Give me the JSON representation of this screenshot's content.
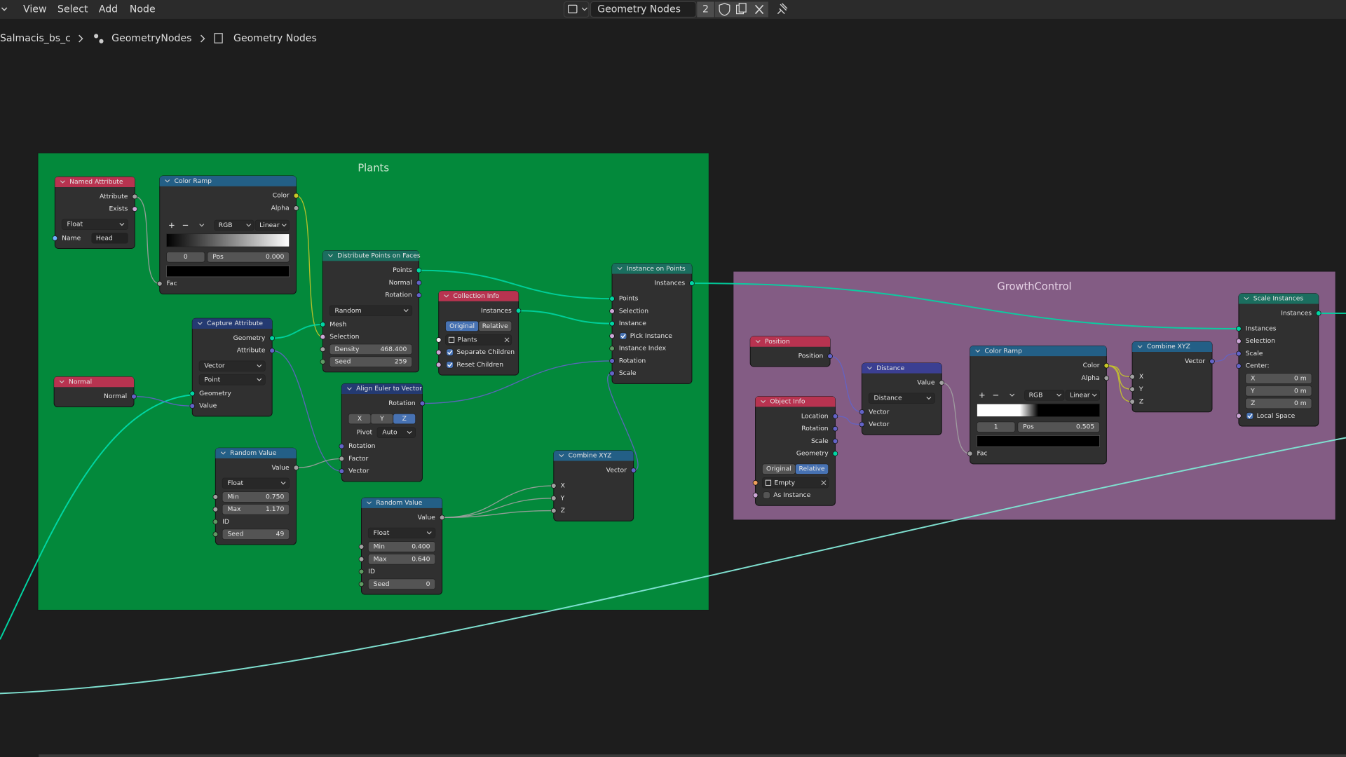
{
  "header": {
    "menus": [
      "View",
      "Select",
      "Add",
      "Node"
    ],
    "tree_name": "Geometry Nodes",
    "users": "2"
  },
  "breadcrumbs": [
    "Salmacis_bs_c",
    "GeometryNodes",
    "Geometry Nodes"
  ],
  "frames": [
    {
      "label": "Plants"
    },
    {
      "label": "GrowthControl"
    }
  ],
  "nodes": [
    {
      "title": "Named Attribute",
      "rows": [
        {
          "out": "Attribute"
        },
        {
          "out": "Exists"
        },
        {
          "menu": "Float"
        },
        {
          "string": "Name",
          "value": "Head"
        }
      ]
    },
    {
      "title": "Color Ramp",
      "rows": [
        {
          "out": "Color"
        },
        {
          "out": "Alpha"
        },
        {
          "ramp": {
            "mode": "RGB",
            "interpolation": "Linear",
            "index": "0",
            "pos_label": "Pos",
            "pos": "0.000"
          }
        },
        {
          "in": "Fac"
        }
      ]
    },
    {
      "title": "Distribute Points on Faces",
      "rows": [
        {
          "out": "Points"
        },
        {
          "out": "Normal"
        },
        {
          "out": "Rotation"
        },
        {
          "menu": "Random"
        },
        {
          "in": "Mesh"
        },
        {
          "in": "Selection"
        },
        {
          "field": "Density",
          "value": "468.400"
        },
        {
          "field": "Seed",
          "value": "259"
        }
      ]
    },
    {
      "title": "Capture Attribute",
      "rows": [
        {
          "out": "Geometry"
        },
        {
          "out": "Attribute"
        },
        {
          "menu": "Vector"
        },
        {
          "menu": "Point"
        },
        {
          "in": "Geometry"
        },
        {
          "in": "Value"
        }
      ]
    },
    {
      "title": "Normal",
      "rows": [
        {
          "out": "Normal"
        }
      ]
    },
    {
      "title": "Collection Info",
      "rows": [
        {
          "out": "Instances"
        },
        {
          "toggle": [
            "Original",
            "Relative"
          ],
          "active": 0
        },
        {
          "object": "Plants"
        },
        {
          "check": "Separate Children",
          "checked": true
        },
        {
          "check": "Reset Children",
          "checked": true
        }
      ]
    },
    {
      "title": "Instance on Points",
      "rows": [
        {
          "out": "Instances"
        },
        {
          "in": "Points"
        },
        {
          "in": "Selection"
        },
        {
          "in": "Instance"
        },
        {
          "check": "Pick Instance",
          "checked": true
        },
        {
          "in": "Instance Index"
        },
        {
          "in": "Rotation"
        },
        {
          "in": "Scale"
        }
      ]
    },
    {
      "title": "Align Euler to Vector",
      "rows": [
        {
          "out": "Rotation"
        },
        {
          "buttons": [
            "X",
            "Y",
            "Z"
          ],
          "active": 2
        },
        {
          "menu": "Auto",
          "label": "Pivot"
        },
        {
          "in": "Rotation"
        },
        {
          "in": "Factor"
        },
        {
          "in": "Vector"
        }
      ]
    },
    {
      "title": "Random Value",
      "rows": [
        {
          "out": "Value"
        },
        {
          "menu": "Float"
        },
        {
          "field": "Min",
          "value": "0.750"
        },
        {
          "field": "Max",
          "value": "1.170"
        },
        {
          "in": "ID"
        },
        {
          "field": "Seed",
          "value": "49"
        }
      ]
    },
    {
      "title": "Random Value",
      "rows": [
        {
          "out": "Value"
        },
        {
          "menu": "Float"
        },
        {
          "field": "Min",
          "value": "0.400"
        },
        {
          "field": "Max",
          "value": "0.640"
        },
        {
          "in": "ID"
        },
        {
          "field": "Seed",
          "value": "0"
        }
      ]
    },
    {
      "title": "Combine XYZ",
      "rows": [
        {
          "out": "Vector"
        },
        {
          "in": "X"
        },
        {
          "in": "Y"
        },
        {
          "in": "Z"
        }
      ]
    },
    {
      "title": "Position",
      "rows": [
        {
          "out": "Position"
        }
      ]
    },
    {
      "title": "Object Info",
      "rows": [
        {
          "out": "Location"
        },
        {
          "out": "Rotation"
        },
        {
          "out": "Scale"
        },
        {
          "out": "Geometry"
        },
        {
          "toggle": [
            "Original",
            "Relative"
          ],
          "active": 1
        },
        {
          "object": "Empty"
        },
        {
          "check": "As Instance",
          "checked": false
        }
      ]
    },
    {
      "title": "Distance",
      "rows": [
        {
          "out": "Value"
        },
        {
          "menu": "Distance"
        },
        {
          "in": "Vector"
        },
        {
          "in": "Vector"
        }
      ]
    },
    {
      "title": "Color Ramp",
      "rows": [
        {
          "out": "Color"
        },
        {
          "out": "Alpha"
        },
        {
          "ramp": {
            "mode": "RGB",
            "interpolation": "Linear",
            "index": "1",
            "pos_label": "Pos",
            "pos": "0.505"
          }
        },
        {
          "in": "Fac"
        }
      ]
    },
    {
      "title": "Combine XYZ",
      "rows": [
        {
          "out": "Vector"
        },
        {
          "in": "X"
        },
        {
          "in": "Y"
        },
        {
          "in": "Z"
        }
      ]
    },
    {
      "title": "Scale Instances",
      "rows": [
        {
          "out": "Instances"
        },
        {
          "in": "Instances"
        },
        {
          "in": "Selection"
        },
        {
          "in": "Scale"
        },
        {
          "label": "Center:"
        },
        {
          "field": "X",
          "value": "0 m"
        },
        {
          "field": "Y",
          "value": "0 m"
        },
        {
          "field": "Z",
          "value": "0 m"
        },
        {
          "check": "Local Space",
          "checked": true
        }
      ]
    }
  ]
}
